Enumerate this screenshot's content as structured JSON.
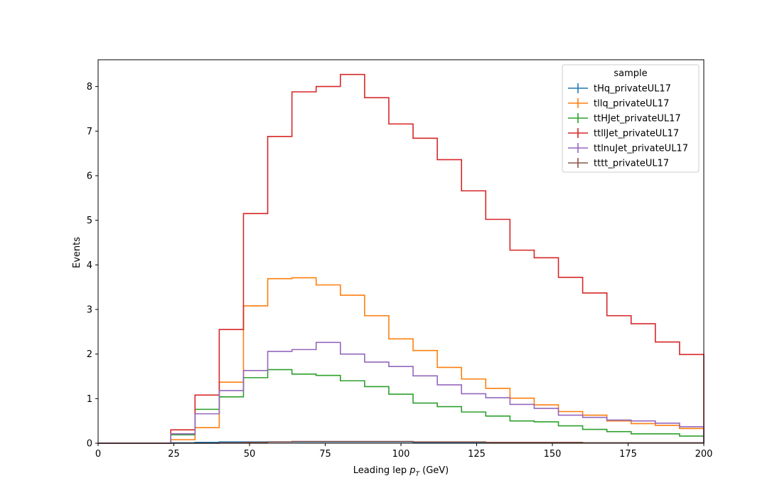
{
  "chart_data": {
    "type": "step",
    "title": "",
    "xlabel": {
      "prefix": "Leading lep ",
      "var": "p",
      "sub": "T",
      "suffix": " (GeV)"
    },
    "ylabel": "Events",
    "xlim": [
      0,
      200
    ],
    "ylim": [
      0,
      8.6
    ],
    "xticks": [
      0,
      25,
      50,
      75,
      100,
      125,
      150,
      175,
      200
    ],
    "yticks": [
      0,
      1,
      2,
      3,
      4,
      5,
      6,
      7,
      8
    ],
    "grid": false,
    "legend": {
      "title": "sample",
      "placement": "top-right"
    },
    "bin_edges": [
      0,
      8,
      16,
      24,
      32,
      40,
      48,
      56,
      64,
      72,
      80,
      88,
      96,
      104,
      112,
      120,
      128,
      136,
      144,
      152,
      160,
      168,
      176,
      184,
      192,
      200
    ],
    "series": [
      {
        "name": "tHq_privateUL17",
        "color": "#1f77b4",
        "values": [
          0,
          0,
          0,
          0.01,
          0.02,
          0.03,
          0.03,
          0.03,
          0.03,
          0.03,
          0.03,
          0.03,
          0.03,
          0.02,
          0.02,
          0.02,
          0.02,
          0.02,
          0.02,
          0.01,
          0.01,
          0.01,
          0.01,
          0.01,
          0.01
        ]
      },
      {
        "name": "tllq_privateUL17",
        "color": "#ff7f0e",
        "values": [
          0,
          0,
          0,
          0.08,
          0.35,
          1.37,
          3.08,
          3.69,
          3.71,
          3.55,
          3.32,
          2.86,
          2.34,
          2.08,
          1.7,
          1.44,
          1.23,
          1.01,
          0.86,
          0.71,
          0.63,
          0.5,
          0.44,
          0.4,
          0.33
        ]
      },
      {
        "name": "ttHJet_privateUL17",
        "color": "#2ca02c",
        "values": [
          0,
          0,
          0,
          0.19,
          0.76,
          1.04,
          1.47,
          1.65,
          1.55,
          1.52,
          1.4,
          1.27,
          1.1,
          0.9,
          0.82,
          0.7,
          0.61,
          0.5,
          0.48,
          0.39,
          0.31,
          0.26,
          0.21,
          0.21,
          0.16
        ]
      },
      {
        "name": "ttllJet_privateUL17",
        "color": "#d62728",
        "values": [
          0,
          0,
          0,
          0.3,
          1.08,
          2.55,
          5.15,
          6.88,
          7.88,
          8.0,
          8.27,
          7.75,
          7.16,
          6.84,
          6.36,
          5.66,
          5.02,
          4.33,
          4.16,
          3.72,
          3.37,
          2.86,
          2.68,
          2.27,
          1.99
        ]
      },
      {
        "name": "ttlnuJet_privateUL17",
        "color": "#9467bd",
        "values": [
          0,
          0,
          0,
          0.21,
          0.66,
          1.18,
          1.63,
          2.06,
          2.1,
          2.26,
          2.0,
          1.82,
          1.72,
          1.51,
          1.31,
          1.11,
          1.02,
          0.87,
          0.78,
          0.63,
          0.58,
          0.52,
          0.5,
          0.45,
          0.37
        ]
      },
      {
        "name": "tttt_privateUL17",
        "color": "#8c564b",
        "values": [
          0,
          0,
          0,
          0,
          0,
          0.01,
          0.02,
          0.03,
          0.04,
          0.04,
          0.04,
          0.04,
          0.04,
          0.03,
          0.03,
          0.03,
          0.02,
          0.02,
          0.02,
          0.02,
          0.01,
          0.01,
          0.01,
          0.01,
          0.01
        ]
      }
    ]
  }
}
